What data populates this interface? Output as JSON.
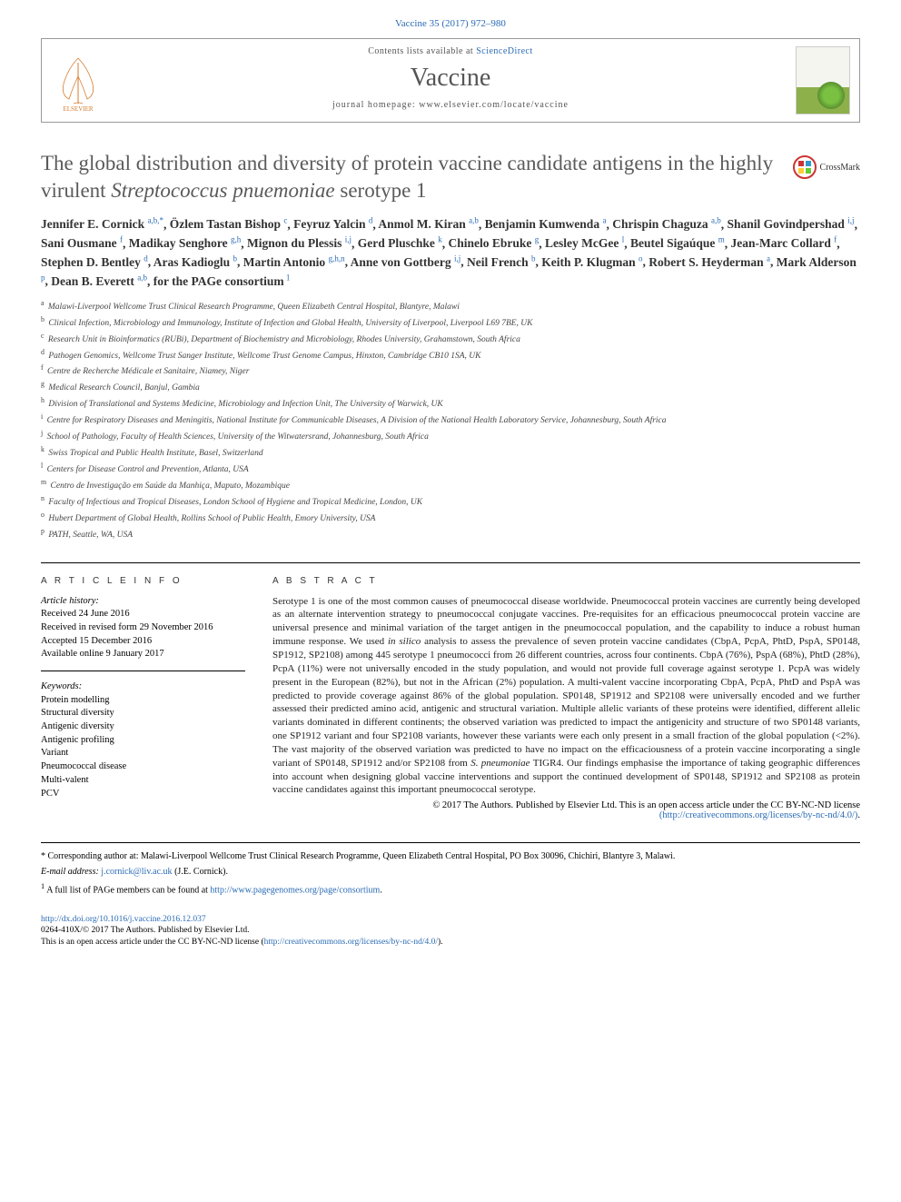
{
  "citation": "Vaccine 35 (2017) 972–980",
  "header": {
    "contents_prefix": "Contents lists available at ",
    "contents_link": "ScienceDirect",
    "journal": "Vaccine",
    "homepage_prefix": "journal homepage: ",
    "homepage_url": "www.elsevier.com/locate/vaccine",
    "publisher_label": "ELSEVIER",
    "cover_label": "Vaccine"
  },
  "crossmark_label": "CrossMark",
  "title_parts": {
    "pre": "The global distribution and diversity of protein vaccine candidate antigens in the highly virulent ",
    "species": "Streptococcus pnuemoniae",
    "post": " serotype 1"
  },
  "authors": [
    {
      "name": "Jennifer E. Cornick",
      "aff": "a,b,*"
    },
    {
      "name": "Özlem Tastan Bishop",
      "aff": "c"
    },
    {
      "name": "Feyruz Yalcin",
      "aff": "d"
    },
    {
      "name": "Anmol M. Kiran",
      "aff": "a,b"
    },
    {
      "name": "Benjamin Kumwenda",
      "aff": "a"
    },
    {
      "name": "Chrispin Chaguza",
      "aff": "a,b"
    },
    {
      "name": "Shanil Govindpershad",
      "aff": "i,j"
    },
    {
      "name": "Sani Ousmane",
      "aff": "f"
    },
    {
      "name": "Madikay Senghore",
      "aff": "g,h"
    },
    {
      "name": "Mignon du Plessis",
      "aff": "i,j"
    },
    {
      "name": "Gerd Pluschke",
      "aff": "k"
    },
    {
      "name": "Chinelo Ebruke",
      "aff": "g"
    },
    {
      "name": "Lesley McGee",
      "aff": "l"
    },
    {
      "name": "Beutel Sigaúque",
      "aff": "m"
    },
    {
      "name": "Jean-Marc Collard",
      "aff": "f"
    },
    {
      "name": "Stephen D. Bentley",
      "aff": "d"
    },
    {
      "name": "Aras Kadioglu",
      "aff": "b"
    },
    {
      "name": "Martin Antonio",
      "aff": "g,h,n"
    },
    {
      "name": "Anne von Gottberg",
      "aff": "i,j"
    },
    {
      "name": "Neil French",
      "aff": "b"
    },
    {
      "name": "Keith P. Klugman",
      "aff": "o"
    },
    {
      "name": "Robert S. Heyderman",
      "aff": "a"
    },
    {
      "name": "Mark Alderson",
      "aff": "p"
    },
    {
      "name": "Dean B. Everett",
      "aff": "a,b"
    }
  ],
  "consortium": ", for the PAGe consortium",
  "consortium_sup": "1",
  "affiliations": [
    {
      "k": "a",
      "t": "Malawi-Liverpool Wellcome Trust Clinical Research Programme, Queen Elizabeth Central Hospital, Blantyre, Malawi"
    },
    {
      "k": "b",
      "t": "Clinical Infection, Microbiology and Immunology, Institute of Infection and Global Health, University of Liverpool, Liverpool L69 7BE, UK"
    },
    {
      "k": "c",
      "t": "Research Unit in Bioinformatics (RUBi), Department of Biochemistry and Microbiology, Rhodes University, Grahamstown, South Africa"
    },
    {
      "k": "d",
      "t": "Pathogen Genomics, Wellcome Trust Sanger Institute, Wellcome Trust Genome Campus, Hinxton, Cambridge CB10 1SA, UK"
    },
    {
      "k": "f",
      "t": "Centre de Recherche Médicale et Sanitaire, Niamey, Niger"
    },
    {
      "k": "g",
      "t": "Medical Research Council, Banjul, Gambia"
    },
    {
      "k": "h",
      "t": "Division of Translational and Systems Medicine, Microbiology and Infection Unit, The University of Warwick, UK"
    },
    {
      "k": "i",
      "t": "Centre for Respiratory Diseases and Meningitis, National Institute for Communicable Diseases, A Division of the National Health Laboratory Service, Johannesburg, South Africa"
    },
    {
      "k": "j",
      "t": "School of Pathology, Faculty of Health Sciences, University of the Witwatersrand, Johannesburg, South Africa"
    },
    {
      "k": "k",
      "t": "Swiss Tropical and Public Health Institute, Basel, Switzerland"
    },
    {
      "k": "l",
      "t": "Centers for Disease Control and Prevention, Atlanta, USA"
    },
    {
      "k": "m",
      "t": "Centro de Investigação em Saúde da Manhiça, Maputo, Mozambique"
    },
    {
      "k": "n",
      "t": "Faculty of Infectious and Tropical Diseases, London School of Hygiene and Tropical Medicine, London, UK"
    },
    {
      "k": "o",
      "t": "Hubert Department of Global Health, Rollins School of Public Health, Emory University, USA"
    },
    {
      "k": "p",
      "t": "PATH, Seattle, WA, USA"
    }
  ],
  "article_info_heading": "A R T I C L E   I N F O",
  "abstract_heading": "A B S T R A C T",
  "history": {
    "label": "Article history:",
    "lines": [
      "Received 24 June 2016",
      "Received in revised form 29 November 2016",
      "Accepted 15 December 2016",
      "Available online 9 January 2017"
    ]
  },
  "keywords": {
    "label": "Keywords:",
    "items": [
      "Protein modelling",
      "Structural diversity",
      "Antigenic diversity",
      "Antigenic profiling",
      "Variant",
      "Pneumococcal disease",
      "Multi-valent",
      "PCV"
    ]
  },
  "abstract": {
    "p1": "Serotype 1 is one of the most common causes of pneumococcal disease worldwide. Pneumococcal protein vaccines are currently being developed as an alternate intervention strategy to pneumococcal conjugate vaccines. Pre-requisites for an efficacious pneumococcal protein vaccine are universal presence and minimal variation of the target antigen in the pneumococcal population, and the capability to induce a robust human immune response. We used ",
    "p1_em": "in silico",
    "p1b": " analysis to assess the prevalence of seven protein vaccine candidates (CbpA, PcpA, PhtD, PspA, SP0148, SP1912, SP2108) among 445 serotype 1 pneumococci from 26 different countries, across four continents. CbpA (76%), PspA (68%), PhtD (28%), PcpA (11%) were not universally encoded in the study population, and would not provide full coverage against serotype 1. PcpA was widely present in the European (82%), but not in the African (2%) population. A multi-valent vaccine incorporating CbpA, PcpA, PhtD and PspA was predicted to provide coverage against 86% of the global population. SP0148, SP1912 and SP2108 were universally encoded and we further assessed their predicted amino acid, antigenic and structural variation. Multiple allelic variants of these proteins were identified, different allelic variants dominated in different continents; the observed variation was predicted to impact the antigenicity and structure of two SP0148 variants, one SP1912 variant and four SP2108 variants, however these variants were each only present in a small fraction of the global population (<2%). The vast majority of the observed variation was predicted to have no impact on the efficaciousness of a protein vaccine incorporating a single variant of SP0148, SP1912 and/or SP2108 from ",
    "p1_em2": "S. pneumoniae",
    "p1c": " TIGR4. Our findings emphasise the importance of taking geographic differences into account when designing global vaccine interventions and support the continued development of SP0148, SP1912 and SP2108 as protein vaccine candidates against this important pneumococcal serotype."
  },
  "copyright": "© 2017 The Authors. Published by Elsevier Ltd. This is an open access article under the CC BY-NC-ND license",
  "license_url_text": "(http://creativecommons.org/licenses/by-nc-nd/4.0/)",
  "license_url": "http://creativecommons.org/licenses/by-nc-nd/4.0/",
  "footnotes": {
    "corr_marker": "* ",
    "corr_text": "Corresponding author at: Malawi-Liverpool Wellcome Trust Clinical Research Programme, Queen Elizabeth Central Hospital, PO Box 30096, Chichiri, Blantyre 3, Malawi.",
    "email_label": "E-mail address: ",
    "email": "j.cornick@liv.ac.uk",
    "email_suffix": " (J.E. Cornick).",
    "note1_marker": "1 ",
    "note1_text": "A full list of PAGe members can be found at ",
    "note1_link": "http://www.pagegenomes.org/page/consortium",
    "note1_suffix": "."
  },
  "doi": {
    "url": "http://dx.doi.org/10.1016/j.vaccine.2016.12.037",
    "issn_line": "0264-410X/© 2017 The Authors. Published by Elsevier Ltd.",
    "license_line": "This is an open access article under the CC BY-NC-ND license (",
    "license_link": "http://creativecommons.org/licenses/by-nc-nd/4.0/",
    "license_close": ")."
  },
  "colors": {
    "link": "#2a6bb5",
    "title": "#5a5a5a",
    "body": "#000000"
  }
}
